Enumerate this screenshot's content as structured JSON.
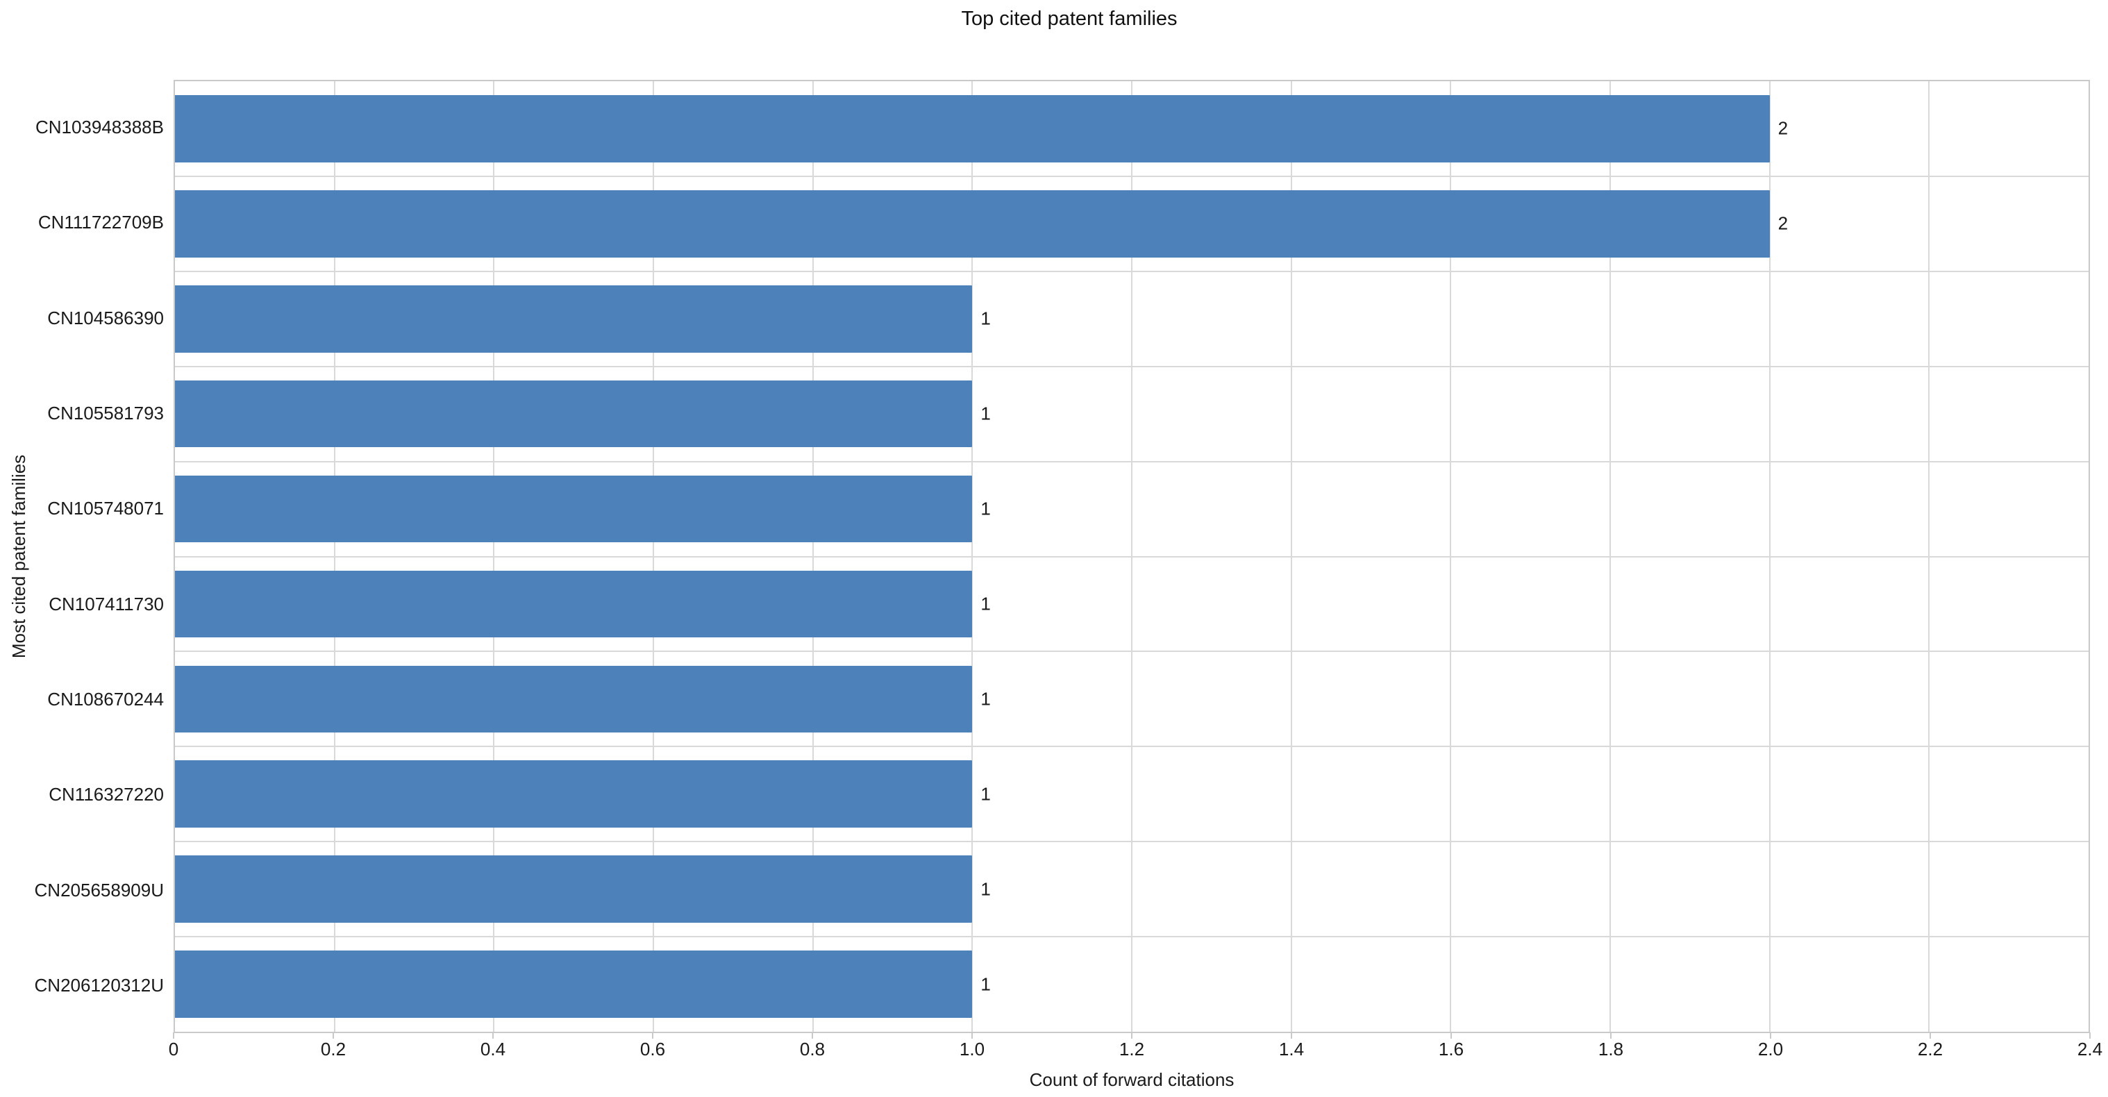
{
  "title": "Top cited patent families",
  "chart_data": {
    "type": "bar",
    "orientation": "horizontal",
    "title": "Top cited patent families",
    "xlabel": "Count of forward citations",
    "ylabel": "Most cited patent families",
    "categories": [
      "CN103948388B",
      "CN111722709B",
      "CN104586390",
      "CN105581793",
      "CN105748071",
      "CN107411730",
      "CN108670244",
      "CN116327220",
      "CN205658909U",
      "CN206120312U"
    ],
    "values": [
      2,
      2,
      1,
      1,
      1,
      1,
      1,
      1,
      1,
      1
    ],
    "bar_labels": [
      "2",
      "2",
      "1",
      "1",
      "1",
      "1",
      "1",
      "1",
      "1",
      "1"
    ],
    "xlim": [
      0,
      2.4
    ],
    "xticks": [
      0,
      0.2,
      0.4,
      0.6,
      0.8,
      1.0,
      1.2,
      1.4,
      1.6,
      1.8,
      2.0,
      2.2,
      2.4
    ],
    "xtick_labels": [
      "0",
      "0.2",
      "0.4",
      "0.6",
      "0.8",
      "1.0",
      "1.2",
      "1.4",
      "1.6",
      "1.8",
      "2.0",
      "2.2",
      "2.4"
    ],
    "grid": true,
    "legend": false,
    "bar_color": "#4c81ba",
    "grid_color": "#d9d9d9",
    "border_color": "#c9c9c9",
    "text_color": "#1a1a1a"
  }
}
